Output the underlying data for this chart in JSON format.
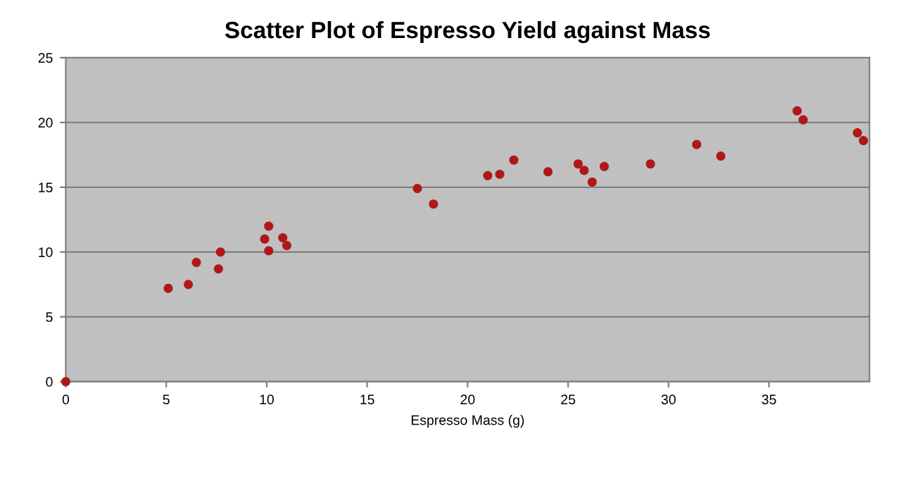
{
  "chart_data": {
    "type": "scatter",
    "title": "Scatter Plot of Espresso Yield against Mass",
    "xlabel": "Espresso Mass (g)",
    "x": [
      0,
      5.1,
      6.1,
      6.5,
      7.6,
      7.7,
      10.1,
      9.9,
      10.1,
      10.8,
      11.0,
      17.5,
      18.3,
      21.0,
      21.6,
      22.3,
      24.0,
      25.5,
      25.8,
      26.2,
      26.8,
      29.1,
      31.4,
      32.6,
      36.4,
      36.7,
      39.4,
      39.7
    ],
    "values": [
      0,
      7.2,
      7.5,
      9.2,
      8.7,
      10.0,
      12.0,
      11.0,
      10.1,
      11.1,
      10.5,
      14.9,
      13.7,
      15.9,
      16.0,
      17.1,
      16.2,
      16.8,
      16.3,
      15.4,
      16.6,
      16.8,
      18.3,
      17.4,
      20.9,
      20.2,
      19.2,
      18.6
    ],
    "color": "#b01818",
    "marker": "circle",
    "grid": "y",
    "xlim": [
      0,
      40
    ],
    "xticks": [
      0,
      5,
      10,
      15,
      20,
      25,
      30,
      35
    ],
    "ylim": [
      0,
      25
    ],
    "yticks": [
      0,
      5,
      10,
      15,
      20,
      25
    ]
  }
}
